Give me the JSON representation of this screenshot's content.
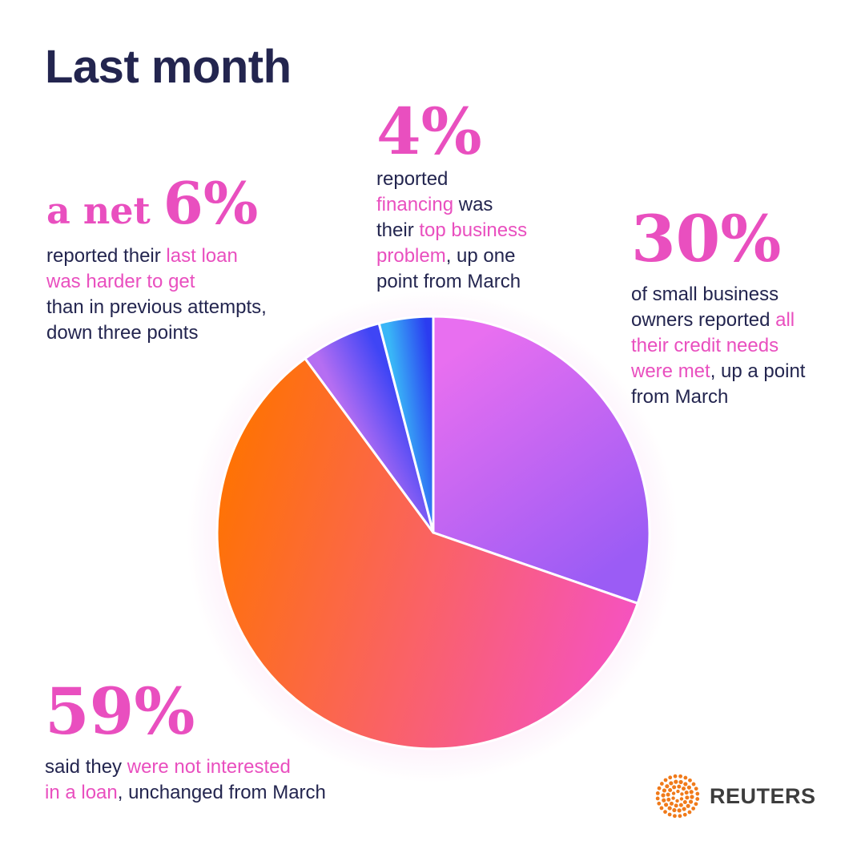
{
  "title": "Last month",
  "chart_data": {
    "type": "pie",
    "slices": [
      {
        "value": 30,
        "label": "30%",
        "colors": [
          "#e86ff0",
          "#9b5cf5"
        ]
      },
      {
        "value": 59,
        "label": "59%",
        "colors": [
          "#ff7300",
          "#f552c3"
        ]
      },
      {
        "value": 6,
        "label": "6%",
        "colors": [
          "#b56ef2",
          "#3f45f5"
        ]
      },
      {
        "value": 4,
        "label": "4%",
        "colors": [
          "#39b6f7",
          "#2b3cf0"
        ]
      }
    ]
  },
  "annotations": {
    "net6": {
      "prefix": "a net ",
      "pct": "6%",
      "lines": [
        [
          {
            "t": "reported their "
          },
          {
            "t": "last loan",
            "hl": true
          }
        ],
        [
          {
            "t": "was harder to get",
            "hl": true
          }
        ],
        [
          {
            "t": "than in previous attempts,"
          }
        ],
        [
          {
            "t": "down three points"
          }
        ]
      ]
    },
    "pct4": {
      "pct": "4%",
      "lines": [
        [
          {
            "t": "reported"
          }
        ],
        [
          {
            "t": "financing",
            "hl": true
          },
          {
            "t": " was"
          }
        ],
        [
          {
            "t": "their "
          },
          {
            "t": "top business",
            "hl": true
          }
        ],
        [
          {
            "t": "problem",
            "hl": true
          },
          {
            "t": ", up one"
          }
        ],
        [
          {
            "t": "point from March"
          }
        ]
      ]
    },
    "pct30": {
      "pct": "30%",
      "lines": [
        [
          {
            "t": "of small business"
          }
        ],
        [
          {
            "t": "owners reported "
          },
          {
            "t": "all",
            "hl": true
          }
        ],
        [
          {
            "t": "their credit needs",
            "hl": true
          }
        ],
        [
          {
            "t": "were met",
            "hl": true
          },
          {
            "t": ", up a point"
          }
        ],
        [
          {
            "t": "from March"
          }
        ]
      ]
    },
    "pct59": {
      "pct": "59%",
      "lines": [
        [
          {
            "t": "said they "
          },
          {
            "t": "were not interested",
            "hl": true
          }
        ],
        [
          {
            "t": "in a loan",
            "hl": true
          },
          {
            "t": ", unchanged from March"
          }
        ]
      ]
    }
  },
  "logo": {
    "text": "REUTERS",
    "icon": "reuters-dot-ring-icon",
    "color": "#f07a1a"
  },
  "colors": {
    "accent": "#e94fbf",
    "text": "#23254f"
  }
}
